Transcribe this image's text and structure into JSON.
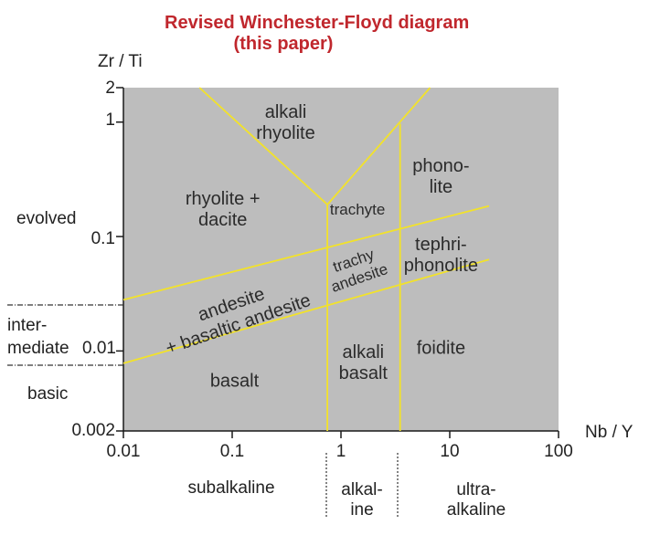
{
  "title_line1": "Revised Winchester-Floyd diagram",
  "title_line2": "(this paper)",
  "chart_data": {
    "type": "diagram",
    "xlabel": "Nb / Y",
    "ylabel": "Zr / Ti",
    "x_scale": "log",
    "y_scale": "log",
    "xlim": [
      0.01,
      100
    ],
    "ylim": [
      0.002,
      2
    ],
    "x_ticks": [
      "0.01",
      "0.1",
      "1",
      "10",
      "100"
    ],
    "y_ticks": [
      "2",
      "1",
      "0.1",
      "0.01",
      "0.002"
    ],
    "colors": {
      "field_fill": "#bdbdbd",
      "boundary": "#f2e22a",
      "title": "#c0272d"
    },
    "boundaries": [
      {
        "x": [
          0.05,
          0.75
        ],
        "y": [
          2,
          0.19
        ]
      },
      {
        "x": [
          0.75,
          6.6
        ],
        "y": [
          0.19,
          2
        ]
      },
      {
        "x": [
          0.75,
          0.75
        ],
        "y": [
          0.002,
          0.19
        ]
      },
      {
        "x": [
          3.5,
          3.5
        ],
        "y": [
          0.002,
          0.97
        ]
      },
      {
        "x": [
          0.01,
          23
        ],
        "y": [
          0.028,
          0.185
        ]
      },
      {
        "x": [
          0.01,
          23
        ],
        "y": [
          0.0078,
          0.063
        ]
      }
    ],
    "fields": [
      {
        "lines": [
          "alkali",
          "rhyolite"
        ],
        "x": 0.31,
        "y": 0.97
      },
      {
        "lines": [
          "phono-",
          "lite"
        ],
        "x": 8.3,
        "y": 0.33
      },
      {
        "lines": [
          "rhyolite +",
          "dacite"
        ],
        "x": 0.082,
        "y": 0.17
      },
      {
        "lines": [
          "trachyte"
        ],
        "x": 1.42,
        "y": 0.17,
        "size": "small"
      },
      {
        "lines": [
          "tephri-",
          "phonolite"
        ],
        "x": 8.3,
        "y": 0.068
      },
      {
        "lines": [
          "trachy",
          "andesite"
        ],
        "x": 1.4,
        "y": 0.052,
        "size": "small",
        "rotate": -19
      },
      {
        "lines": [
          "andesite",
          "+ basaltic andesite"
        ],
        "x": 0.105,
        "y": 0.0205,
        "rotate": -19
      },
      {
        "lines": [
          "alkali",
          "basalt"
        ],
        "x": 1.6,
        "y": 0.0078
      },
      {
        "lines": [
          "foidite"
        ],
        "x": 8.3,
        "y": 0.0104
      },
      {
        "lines": [
          "basalt"
        ],
        "x": 0.105,
        "y": 0.0054
      }
    ]
  },
  "side_labels": {
    "evolved": "evolved",
    "intermediate_line1": "inter-",
    "intermediate_line2": "mediate",
    "intermediate_tick": "0.01",
    "basic": "basic"
  },
  "bottom_labels": {
    "subalkaline": "subalkaline",
    "alkaline_line1": "alkal-",
    "alkaline_line2": "ine",
    "ultra_line1": "ultra-",
    "ultra_line2": "alkaline"
  }
}
